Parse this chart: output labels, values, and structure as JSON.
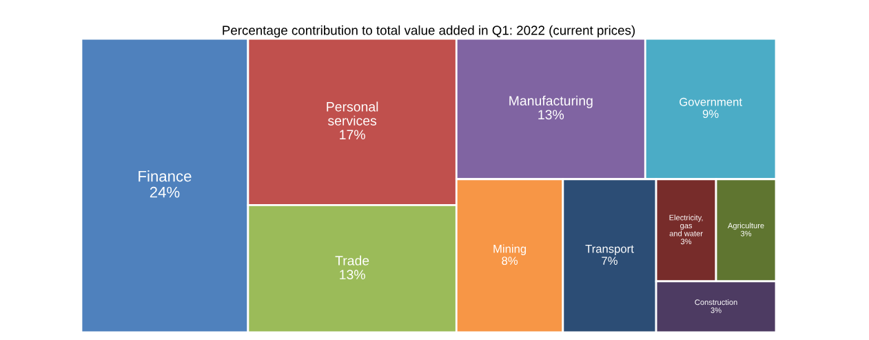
{
  "chart_data": {
    "type": "other",
    "title": "Percentage contribution to total value added in Q1: 2022 (current prices)",
    "categories": [
      "Finance",
      "Personal\nservices",
      "Trade",
      "Manufacturing",
      "Government",
      "Mining",
      "Transport",
      "Electricity,\ngas\nand water",
      "Agriculture",
      "Construction"
    ],
    "values": [
      24,
      17,
      13,
      13,
      9,
      8,
      7,
      3,
      3,
      3
    ],
    "value_labels": [
      "24%",
      "17%",
      "13%",
      "13%",
      "9%",
      "8%",
      "7%",
      "3%",
      "3%",
      "3%"
    ],
    "colors": [
      "#4f81bd",
      "#c0504d",
      "#9bbb59",
      "#8064a2",
      "#4bacc6",
      "#f79646",
      "#2c4d75",
      "#772c2a",
      "#5f7530",
      "#4d3b62"
    ]
  }
}
